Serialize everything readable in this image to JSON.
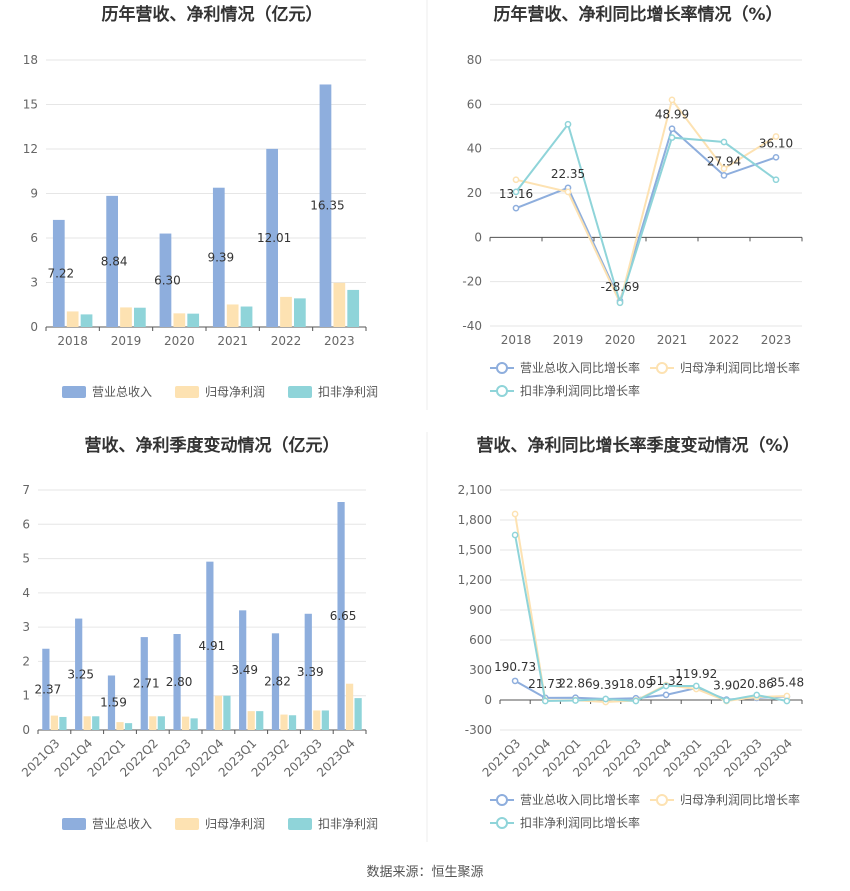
{
  "source_text": "数据来源：恒生聚源",
  "colors": {
    "revenue": "#8eaedd",
    "net": "#fde2b2",
    "deducted": "#8fd4d9",
    "grid": "#e6e6e6",
    "axis": "#555555"
  },
  "chart_data": [
    {
      "id": "annual_bar",
      "type": "bar",
      "title": "历年营收、净利情况（亿元）",
      "categories": [
        "2018",
        "2019",
        "2020",
        "2021",
        "2022",
        "2023"
      ],
      "yticks": [
        0,
        3,
        6,
        9,
        12,
        15,
        18
      ],
      "ylim": [
        0,
        18
      ],
      "labelled_series": 0,
      "series": [
        {
          "name": "营业总收入",
          "values": [
            7.22,
            8.84,
            6.3,
            9.39,
            12.01,
            16.35
          ],
          "labels": [
            "7.22",
            "8.84",
            "6.30",
            "9.39",
            "12.01",
            "16.35"
          ]
        },
        {
          "name": "归母净利润",
          "values": [
            1.05,
            1.32,
            0.92,
            1.52,
            2.03,
            2.98
          ]
        },
        {
          "name": "扣非净利润",
          "values": [
            0.85,
            1.3,
            0.9,
            1.38,
            1.93,
            2.5
          ]
        }
      ],
      "legend": "bottom"
    },
    {
      "id": "annual_line",
      "type": "line",
      "title": "历年营收、净利同比增长率情况（%）",
      "categories": [
        "2018",
        "2019",
        "2020",
        "2021",
        "2022",
        "2023"
      ],
      "yticks": [
        -40,
        -20,
        0,
        20,
        40,
        60,
        80
      ],
      "ylim": [
        -40,
        80
      ],
      "labelled_series": 0,
      "series": [
        {
          "name": "营业总收入同比增长率",
          "values": [
            13.16,
            22.35,
            -28.69,
            48.99,
            27.94,
            36.1
          ],
          "labels": [
            "13.16",
            "22.35",
            "-28.69",
            "48.99",
            "27.94",
            "36.10"
          ]
        },
        {
          "name": "归母净利润同比增长率",
          "values": [
            26,
            20.5,
            -29.5,
            62,
            31,
            45.5
          ]
        },
        {
          "name": "扣非净利润同比增长率",
          "values": [
            20.5,
            51,
            -29.5,
            45,
            43,
            26
          ]
        }
      ],
      "legend": "bottom"
    },
    {
      "id": "quarter_bar",
      "type": "bar",
      "title": "营收、净利季度变动情况（亿元）",
      "categories": [
        "2021Q3",
        "2021Q4",
        "2022Q1",
        "2022Q2",
        "2022Q3",
        "2022Q4",
        "2023Q1",
        "2023Q2",
        "2023Q3",
        "2023Q4"
      ],
      "yticks": [
        0,
        1,
        2,
        3,
        4,
        5,
        6,
        7
      ],
      "ylim": [
        0,
        7
      ],
      "labelled_series": 0,
      "series": [
        {
          "name": "营业总收入",
          "values": [
            2.37,
            3.25,
            1.59,
            2.71,
            2.8,
            4.91,
            3.49,
            2.82,
            3.39,
            6.65
          ],
          "labels": [
            "2.37",
            "3.25",
            "1.59",
            "2.71",
            "2.80",
            "4.91",
            "3.49",
            "2.82",
            "3.39",
            "6.65"
          ]
        },
        {
          "name": "归母净利润",
          "values": [
            0.42,
            0.4,
            0.23,
            0.4,
            0.39,
            1.0,
            0.55,
            0.45,
            0.57,
            1.35
          ]
        },
        {
          "name": "扣非净利润",
          "values": [
            0.38,
            0.4,
            0.2,
            0.4,
            0.34,
            1.0,
            0.55,
            0.43,
            0.57,
            0.93
          ]
        }
      ],
      "legend": "bottom"
    },
    {
      "id": "quarter_line",
      "type": "line",
      "title": "营收、净利同比增长率季度变动情况（%）",
      "categories": [
        "2021Q3",
        "2021Q4",
        "2022Q1",
        "2022Q2",
        "2022Q3",
        "2022Q4",
        "2023Q1",
        "2023Q2",
        "2023Q3",
        "2023Q4"
      ],
      "yticks": [
        -300,
        0,
        300,
        600,
        900,
        1200,
        1500,
        1800,
        2100
      ],
      "ytick_labels": [
        "-300",
        "0",
        "300",
        "600",
        "900",
        "1,200",
        "1,500",
        "1,800",
        "2,100"
      ],
      "ylim": [
        -300,
        2100
      ],
      "labelled_series": 0,
      "series": [
        {
          "name": "营业总收入同比增长率",
          "values": [
            190.73,
            21.73,
            22.86,
            9.39,
            18.09,
            51.32,
            119.92,
            3.9,
            20.86,
            35.48
          ],
          "labels": [
            "190.73",
            "21.73",
            "22.86",
            "9.39",
            "18.09",
            "51.32",
            "119.92",
            "3.90",
            "20.86",
            "35.48"
          ]
        },
        {
          "name": "归母净利润同比增长率",
          "values": [
            1860,
            -5,
            -2,
            -20,
            -5,
            150,
            110,
            -10,
            30,
            40
          ]
        },
        {
          "name": "扣非净利润同比增长率",
          "values": [
            1650,
            -10,
            -5,
            10,
            -10,
            140,
            140,
            -5,
            50,
            -10
          ]
        }
      ],
      "legend": "bottom"
    }
  ]
}
